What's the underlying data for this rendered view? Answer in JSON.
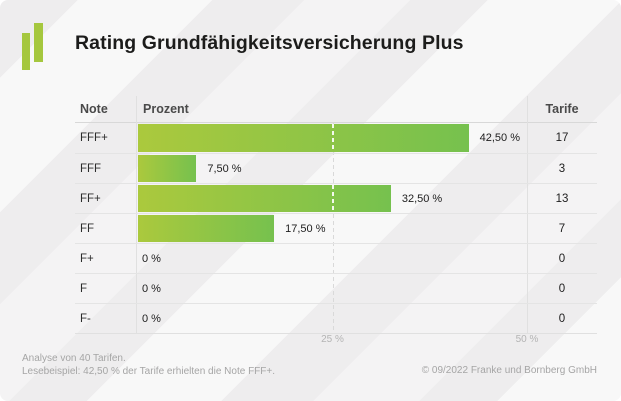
{
  "header": {
    "title": "Rating Grundfähigkeitsversicherung Plus"
  },
  "logo": {
    "name": "franke-und-bornberg-logo"
  },
  "table": {
    "columns": {
      "note": "Note",
      "prozent": "Prozent",
      "tarife": "Tarife"
    },
    "rows": [
      {
        "note": "FFF+",
        "percent": 42.5,
        "percent_label": "42,50 %",
        "tarife": "17"
      },
      {
        "note": "FFF",
        "percent": 7.5,
        "percent_label": "7,50 %",
        "tarife": "3"
      },
      {
        "note": "FF+",
        "percent": 32.5,
        "percent_label": "32,50 %",
        "tarife": "13"
      },
      {
        "note": "FF",
        "percent": 17.5,
        "percent_label": "17,50 %",
        "tarife": "7"
      },
      {
        "note": "F+",
        "percent": 0,
        "percent_label": "0 %",
        "tarife": "0"
      },
      {
        "note": "F",
        "percent": 0,
        "percent_label": "0 %",
        "tarife": "0"
      },
      {
        "note": "F-",
        "percent": 0,
        "percent_label": "0 %",
        "tarife": "0"
      }
    ]
  },
  "axis": {
    "ticks": [
      {
        "percent": 25,
        "label": "25 %"
      },
      {
        "percent": 50,
        "label": "50 %"
      }
    ]
  },
  "footer": {
    "line1": "Analyse von 40 Tarifen.",
    "line2": "Lesebeispiel: 42,50 % der Tarife erhielten die Note FFF+.",
    "copyright": "© 09/2022 Franke und Bornberg GmbH"
  },
  "colors": {
    "accent": "#a5c73e",
    "bar_gradient_start": "#abc93d",
    "bar_gradient_end": "#76c14e",
    "grid_dashed": "#d9d9d9"
  },
  "chart_data": {
    "type": "bar",
    "orientation": "horizontal",
    "title": "Rating Grundfähigkeitsversicherung Plus",
    "categories": [
      "FFF+",
      "FFF",
      "FF+",
      "FF",
      "F+",
      "F",
      "F-"
    ],
    "series": [
      {
        "name": "Prozent",
        "unit": "%",
        "values": [
          42.5,
          7.5,
          32.5,
          17.5,
          0,
          0,
          0
        ]
      },
      {
        "name": "Tarife",
        "unit": "count",
        "values": [
          17,
          3,
          13,
          7,
          0,
          0,
          0
        ]
      }
    ],
    "xlabel": "Prozent",
    "ylabel": "Note",
    "xlim": [
      0,
      50.2
    ],
    "xticks": [
      25,
      50
    ],
    "gridlines": {
      "dashed_at_percent": 25
    },
    "legend": "none",
    "total_tarife": 40
  }
}
